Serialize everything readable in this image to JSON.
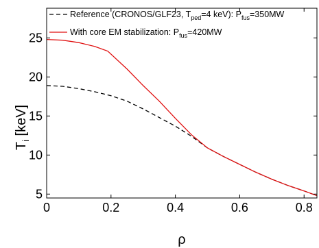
{
  "chart_data": {
    "type": "line",
    "xlabel": "ρ",
    "ylabel_main": "T",
    "ylabel_sub": "i",
    "ylabel_unit": " [keV]",
    "xlim": [
      0,
      0.84
    ],
    "ylim": [
      4.5,
      28.8
    ],
    "grid": false,
    "legend_position": "top-left",
    "x_ticks": [
      0,
      0.2,
      0.4,
      0.6,
      0.8
    ],
    "x_tick_labels": [
      "0",
      "0.2",
      "0.4",
      "0.6",
      "0.8"
    ],
    "y_ticks": [
      5,
      10,
      15,
      20,
      25
    ],
    "y_tick_labels": [
      "5",
      "10",
      "15",
      "20",
      "25"
    ],
    "series": [
      {
        "id": "reference",
        "legend": {
          "parts": [
            {
              "text": "Reference (CRONOS/GLF23, T",
              "sub": false
            },
            {
              "text": "ped",
              "sub": true
            },
            {
              "text": "=4 keV): P",
              "sub": false
            },
            {
              "text": "fus",
              "sub": true
            },
            {
              "text": "=350MW",
              "sub": false
            }
          ]
        },
        "color": "#000000",
        "dash": "6,4",
        "x": [
          0,
          0.05,
          0.1,
          0.15,
          0.2,
          0.25,
          0.3,
          0.35,
          0.4,
          0.45,
          0.5,
          0.55,
          0.6,
          0.65,
          0.7,
          0.75,
          0.8,
          0.84
        ],
        "y": [
          18.9,
          18.8,
          18.5,
          18.1,
          17.6,
          16.9,
          15.9,
          14.8,
          13.7,
          12.4,
          10.9,
          9.8,
          8.8,
          7.8,
          6.9,
          6.1,
          5.4,
          4.8
        ]
      },
      {
        "id": "core-em",
        "legend": {
          "parts": [
            {
              "text": "With core EM stabilization: P",
              "sub": false
            },
            {
              "text": "fus",
              "sub": true
            },
            {
              "text": "=420MW",
              "sub": false
            }
          ]
        },
        "color": "#e01010",
        "dash": "",
        "x": [
          0,
          0.05,
          0.1,
          0.15,
          0.19,
          0.25,
          0.3,
          0.35,
          0.4,
          0.45,
          0.5,
          0.55,
          0.6,
          0.65,
          0.7,
          0.75,
          0.8,
          0.84
        ],
        "y": [
          24.8,
          24.7,
          24.4,
          23.9,
          23.3,
          21.0,
          18.9,
          16.9,
          14.7,
          12.6,
          10.9,
          9.8,
          8.8,
          7.8,
          6.9,
          6.1,
          5.4,
          4.8
        ]
      }
    ]
  }
}
